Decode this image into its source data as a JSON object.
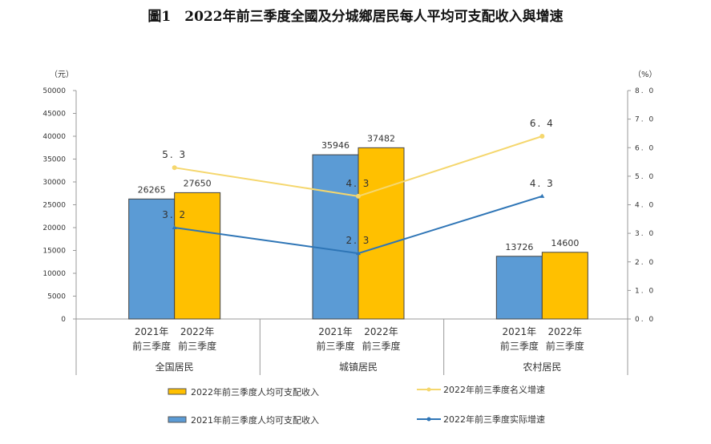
{
  "chart_data": {
    "type": "bar+line",
    "title": "圖1　2022年前三季度全國及分城鄉居民每人平均可支配收入與增速",
    "ylabel_left": "（元）",
    "ylabel_right": "（%）",
    "ylim_left": [
      0,
      50000
    ],
    "ylim_right": [
      0,
      8.0
    ],
    "yticks_left": [
      "0",
      "5000",
      "10000",
      "15000",
      "20000",
      "25000",
      "30000",
      "35000",
      "40000",
      "45000",
      "50000"
    ],
    "yticks_right": [
      "0.0",
      "1.0",
      "2.0",
      "3.0",
      "4.0",
      "5.0",
      "6.0",
      "7.0",
      "8.0"
    ],
    "categories": [
      "全国居民",
      "城镇居民",
      "农村居民"
    ],
    "sub_labels": [
      [
        "2021年",
        "前三季度"
      ],
      [
        "2022年",
        "前三季度"
      ]
    ],
    "bar_series": [
      {
        "name": "2021年前三季度人均可支配收入",
        "color": "#5b9bd5",
        "values": [
          26265,
          35946,
          13726
        ]
      },
      {
        "name": "2022年前三季度人均可支配收入",
        "color": "#ffc000",
        "values": [
          27650,
          37482,
          14600
        ]
      }
    ],
    "line_series": [
      {
        "name": "2022年前三季度名义增速",
        "color": "#f5d76e",
        "values": [
          5.3,
          4.3,
          6.4
        ],
        "labels": [
          "5.3",
          "4.3",
          "6.4"
        ]
      },
      {
        "name": "2022年前三季度实际增速",
        "color": "#2e75b6",
        "values": [
          3.2,
          2.3,
          4.3
        ],
        "labels": [
          "3.2",
          "2.3",
          "4.3"
        ]
      }
    ],
    "legend_placement": "bottom",
    "grid": false
  }
}
